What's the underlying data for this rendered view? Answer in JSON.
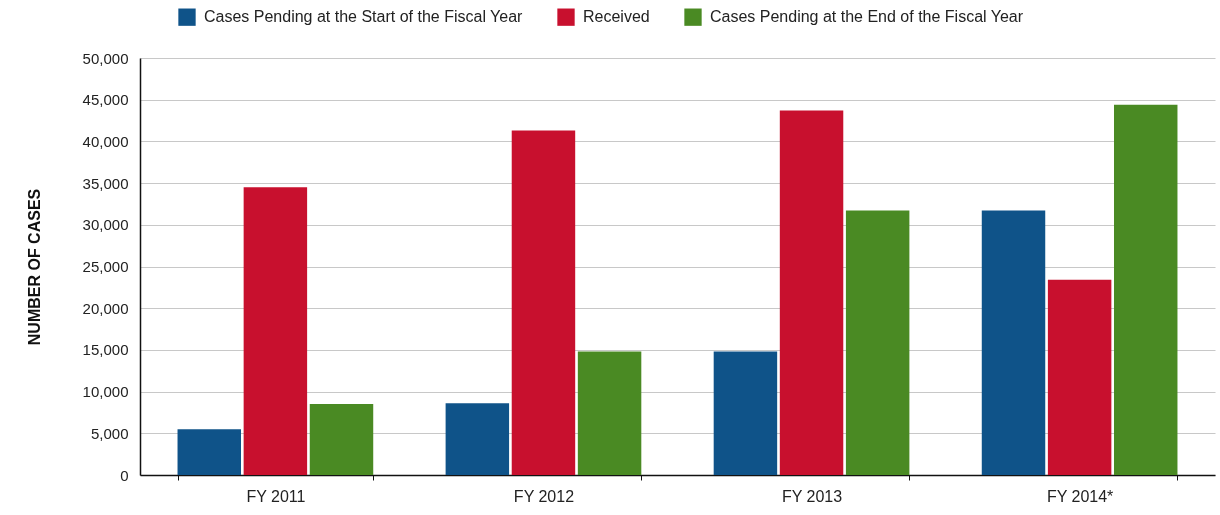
{
  "chart_data": {
    "type": "bar",
    "categories": [
      "FY 2011",
      "FY 2012",
      "FY 2013",
      "FY 2014*"
    ],
    "ylabel": "NUMBER OF CASES",
    "series": [
      {
        "name": "Cases Pending at the Start of the Fiscal Year",
        "color": "#0f5389",
        "values": [
          5500,
          8600,
          14800,
          31700
        ]
      },
      {
        "name": "Received",
        "color": "#c8102e",
        "values": [
          34500,
          41300,
          43700,
          23400
        ]
      },
      {
        "name": "Cases Pending at the End of the Fiscal Year",
        "color": "#4a8a23",
        "values": [
          8500,
          14800,
          31700,
          44400
        ]
      }
    ],
    "ylim": [
      0,
      50000
    ],
    "yticks": [
      0,
      {
        "value": 5000,
        "label": "5,000"
      },
      {
        "value": 10000,
        "label": "10,000"
      },
      {
        "value": 15000,
        "label": "15,000"
      },
      {
        "value": 20000,
        "label": "20,000"
      },
      {
        "value": 25000,
        "label": "25,000"
      },
      {
        "value": 30000,
        "label": "30,000"
      },
      {
        "value": 35000,
        "label": "35,000"
      },
      {
        "value": 40000,
        "label": "40,000"
      },
      {
        "value": 45000,
        "label": "45,000"
      },
      {
        "value": 50000,
        "label": "50,000"
      }
    ],
    "grid": "y",
    "legend": "top"
  }
}
